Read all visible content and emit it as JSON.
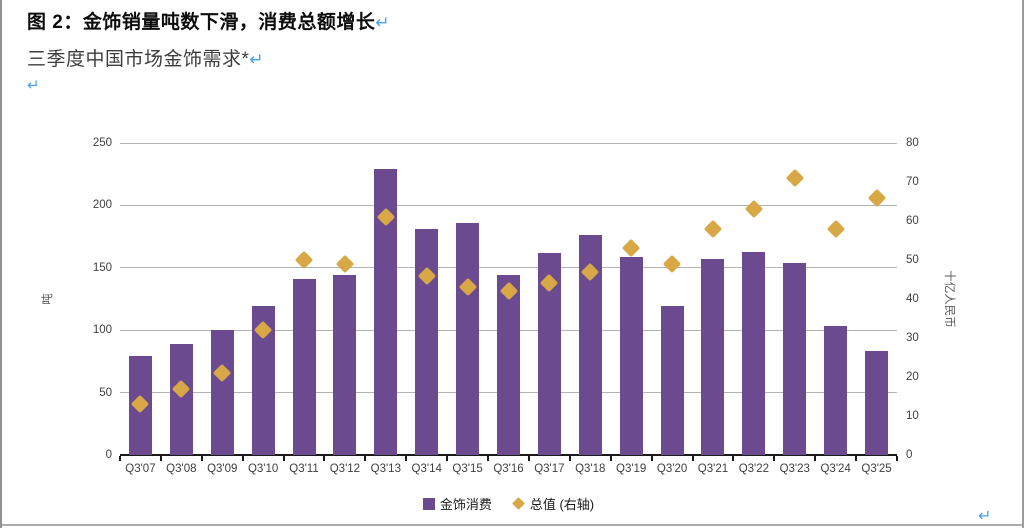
{
  "document": {
    "title": "图 2：金饰销量吨数下滑，消费总额增长",
    "subtitle": "三季度中国市场金饰需求*",
    "paragraph_mark": "↵"
  },
  "colors": {
    "bar": "#6b4a8f",
    "marker": "#d9a846",
    "pilcrow_blue": "#4aa0f2",
    "gridline": "#b3b3b3",
    "axis_line": "#1a1a1a",
    "tick_text": "#3f3f3f"
  },
  "chart_data": {
    "type": "bar",
    "subtype": "combo-bar-with-scatter-markers",
    "title": "三季度中国市场金饰需求*",
    "categories": [
      "Q3'07",
      "Q3'08",
      "Q3'09",
      "Q3'10",
      "Q3'11",
      "Q3'12",
      "Q3'13",
      "Q3'14",
      "Q3'15",
      "Q3'16",
      "Q3'17",
      "Q3'18",
      "Q3'19",
      "Q3'20",
      "Q3'21",
      "Q3'22",
      "Q3'23",
      "Q3'24",
      "Q3'25"
    ],
    "series": [
      {
        "name": "金饰消费",
        "type": "bar",
        "axis": "left",
        "color": "#6b4a8f",
        "values": [
          79,
          89,
          100,
          119,
          141,
          144,
          229,
          181,
          186,
          144,
          162,
          176,
          159,
          119,
          157,
          163,
          154,
          103,
          83
        ]
      },
      {
        "name": "总值 (右轴)",
        "type": "scatter",
        "marker": "diamond",
        "axis": "right",
        "color": "#d9a846",
        "values": [
          13,
          17,
          21,
          32,
          50,
          49,
          61,
          46,
          43,
          42,
          44,
          47,
          53,
          49,
          58,
          63,
          71,
          58,
          66
        ]
      }
    ],
    "left_axis": {
      "title": "吨",
      "min": 0,
      "max": 250,
      "step": 50,
      "ticks": [
        0,
        50,
        100,
        150,
        200,
        250
      ]
    },
    "right_axis": {
      "title": "十亿人民币",
      "min": 0,
      "max": 80,
      "step": 10,
      "ticks": [
        0,
        10,
        20,
        30,
        40,
        50,
        60,
        70,
        80
      ]
    },
    "grid": "horizontal",
    "legend_position": "bottom"
  }
}
